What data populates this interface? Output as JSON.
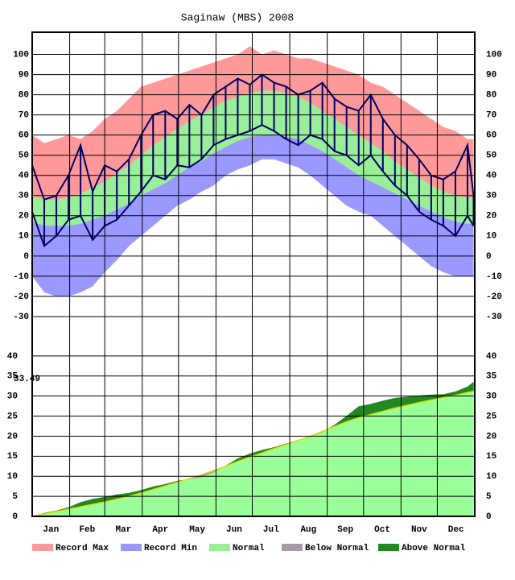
{
  "chart_data": [
    {
      "type": "band",
      "title": "Saginaw (MBS) 2008",
      "x": [
        1,
        11,
        21,
        31,
        41,
        51,
        61,
        71,
        81,
        91,
        101,
        111,
        121,
        131,
        141,
        151,
        161,
        171,
        181,
        191,
        201,
        211,
        221,
        231,
        241,
        251,
        261,
        271,
        281,
        291,
        301,
        311,
        321,
        331,
        341,
        351,
        361,
        366
      ],
      "xlim": [
        1,
        367
      ],
      "ylim": [
        -40,
        111
      ],
      "yticks": [
        -30,
        -20,
        -10,
        0,
        10,
        20,
        30,
        40,
        50,
        60,
        70,
        80,
        90,
        100
      ],
      "series": [
        {
          "name": "Record Max",
          "color": "#ff9999",
          "values": [
            60,
            56,
            58,
            60,
            58,
            62,
            68,
            72,
            78,
            84,
            86,
            88,
            90,
            92,
            94,
            96,
            98,
            100,
            104,
            100,
            102,
            100,
            98,
            98,
            96,
            94,
            92,
            90,
            86,
            84,
            80,
            76,
            72,
            68,
            64,
            62,
            58,
            58
          ]
        },
        {
          "color": "#99ee99",
          "values": [
            30,
            28,
            28,
            29,
            31,
            34,
            37,
            41,
            45,
            50,
            55,
            59,
            63,
            67,
            70,
            74,
            77,
            79,
            81,
            82,
            82,
            81,
            79,
            76,
            72,
            68,
            64,
            60,
            56,
            52,
            47,
            43,
            39,
            35,
            32,
            30,
            29,
            29
          ]
        },
        {
          "color": "#9999ff",
          "values": [
            17,
            15,
            15,
            15,
            16,
            18,
            20,
            23,
            26,
            30,
            33,
            36,
            40,
            44,
            47,
            51,
            54,
            57,
            59,
            60,
            60,
            59,
            58,
            55,
            52,
            48,
            44,
            40,
            37,
            34,
            31,
            28,
            25,
            22,
            19,
            17,
            16,
            16
          ]
        },
        {
          "name": "Record Min",
          "color": "#9999ff",
          "values": [
            -10,
            -18,
            -20,
            -20,
            -18,
            -15,
            -8,
            -2,
            5,
            10,
            15,
            20,
            25,
            28,
            32,
            35,
            40,
            43,
            45,
            48,
            48,
            46,
            44,
            40,
            35,
            30,
            25,
            22,
            20,
            15,
            10,
            5,
            0,
            -5,
            -8,
            -10,
            -10,
            -10
          ]
        },
        {
          "color": "#000066",
          "values": [
            45,
            28,
            30,
            40,
            55,
            32,
            45,
            42,
            48,
            60,
            70,
            72,
            68,
            75,
            70,
            80,
            84,
            88,
            85,
            90,
            86,
            84,
            80,
            82,
            86,
            78,
            74,
            72,
            80,
            68,
            60,
            55,
            48,
            40,
            38,
            42,
            55,
            30
          ]
        },
        {
          "color": "#000066",
          "values": [
            22,
            5,
            10,
            18,
            20,
            8,
            15,
            18,
            25,
            32,
            40,
            38,
            45,
            44,
            48,
            55,
            58,
            60,
            62,
            65,
            62,
            58,
            55,
            60,
            58,
            52,
            50,
            45,
            50,
            42,
            35,
            30,
            22,
            18,
            15,
            10,
            20,
            15
          ]
        }
      ]
    },
    {
      "type": "precip",
      "x": [
        1,
        11,
        21,
        31,
        41,
        51,
        61,
        71,
        81,
        91,
        101,
        111,
        121,
        131,
        141,
        151,
        161,
        171,
        181,
        191,
        201,
        211,
        221,
        231,
        241,
        251,
        261,
        271,
        281,
        291,
        301,
        311,
        321,
        331,
        341,
        351,
        361,
        366
      ],
      "xlim": [
        1,
        367
      ],
      "ylim": [
        0,
        44.8
      ],
      "xticks": [
        {
          "value": 1,
          "label": "Jan"
        },
        {
          "value": 32,
          "label": "Feb"
        },
        {
          "value": 61,
          "label": "Mar"
        },
        {
          "value": 92,
          "label": "Apr"
        },
        {
          "value": 122,
          "label": "May"
        },
        {
          "value": 153,
          "label": "Jun"
        },
        {
          "value": 183,
          "label": "Jul"
        },
        {
          "value": 214,
          "label": "Aug"
        },
        {
          "value": 245,
          "label": "Sep"
        },
        {
          "value": 275,
          "label": "Oct"
        },
        {
          "value": 306,
          "label": "Nov"
        },
        {
          "value": 336,
          "label": "Dec"
        }
      ],
      "yticks": [
        0,
        5,
        10,
        15,
        20,
        25,
        30,
        35,
        40
      ],
      "annotation": "33.49",
      "normal": {
        "name": "Normal",
        "color": "#99ff99",
        "line_color": "#dddd00",
        "values": [
          0,
          0.6,
          1.2,
          1.8,
          2.4,
          3.0,
          3.6,
          4.3,
          5.0,
          5.8,
          6.7,
          7.6,
          8.5,
          9.4,
          10.4,
          11.4,
          12.5,
          13.7,
          14.8,
          15.8,
          16.9,
          17.9,
          18.9,
          20.0,
          21.2,
          22.4,
          23.6,
          24.6,
          25.4,
          26.2,
          27.0,
          27.7,
          28.4,
          29.0,
          29.6,
          30.2,
          30.9,
          31.2
        ]
      },
      "actual": {
        "above_color": "#228822",
        "below_color": "#aa99aa",
        "values": [
          0,
          0.8,
          1.4,
          2.2,
          3.5,
          4.3,
          4.8,
          5.4,
          5.8,
          6.5,
          7.4,
          8.0,
          8.8,
          9.3,
          9.8,
          11.0,
          12.6,
          14.4,
          15.6,
          16.5,
          17.2,
          18.1,
          19.0,
          19.9,
          21.0,
          22.8,
          25.0,
          27.4,
          28.0,
          28.8,
          29.5,
          29.8,
          30.1,
          30.3,
          30.4,
          31.1,
          32.3,
          33.49
        ]
      }
    }
  ],
  "legend": [
    {
      "label": "Record Max",
      "color": "#ff9999"
    },
    {
      "label": "Record Min",
      "color": "#9999ff"
    },
    {
      "label": "Normal",
      "color": "#99ee99"
    },
    {
      "label": "Below Normal",
      "color": "#aa99aa"
    },
    {
      "label": "Above Normal",
      "color": "#228822"
    }
  ]
}
